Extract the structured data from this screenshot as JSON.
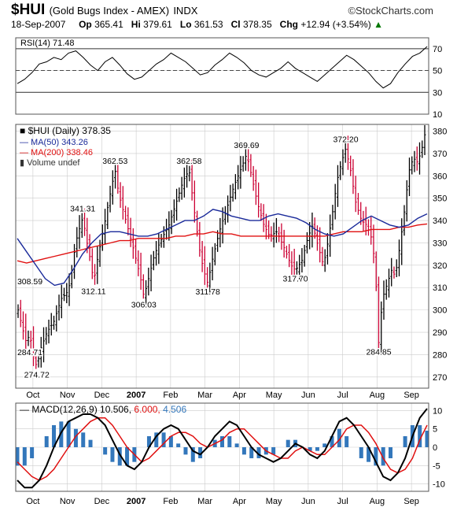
{
  "header": {
    "symbol": "$HUI",
    "name": "(Gold Bugs Index - AMEX)",
    "exchange": "INDX",
    "brand": "©StockCharts.com",
    "date": "18-Sep-2007",
    "op_label": "Op",
    "op": "365.41",
    "hi_label": "Hi",
    "hi": "379.61",
    "lo_label": "Lo",
    "lo": "361.53",
    "cl_label": "Cl",
    "cl": "378.35",
    "chg_label": "Chg",
    "chg": "+12.94 (+3.54%)",
    "chg_arrow": "▲"
  },
  "colors": {
    "price_up": "#000000",
    "price_down": "#cc0033",
    "ma50": "#1a2a9a",
    "ma200": "#e01010",
    "macd": "#000000",
    "signal": "#e01010",
    "hist": "#3377bb",
    "grid": "#cccccc"
  },
  "chart_data": [
    {
      "type": "line",
      "panel": "rsi",
      "title": "RSI(14) 71.48",
      "ylim": [
        10,
        80
      ],
      "y_ticks": [
        70,
        50,
        30,
        10
      ],
      "overbought": 70,
      "oversold": 30,
      "series": [
        {
          "name": "RSI(14)",
          "values": [
            38,
            42,
            48,
            56,
            58,
            62,
            60,
            66,
            68,
            62,
            55,
            50,
            58,
            62,
            55,
            47,
            42,
            44,
            50,
            56,
            60,
            66,
            62,
            58,
            52,
            46,
            48,
            55,
            60,
            66,
            62,
            57,
            50,
            46,
            44,
            48,
            52,
            58,
            52,
            48,
            44,
            40,
            46,
            52,
            58,
            64,
            60,
            54,
            48,
            40,
            34,
            38,
            48,
            56,
            63,
            66,
            72
          ]
        }
      ]
    },
    {
      "type": "ohlc",
      "panel": "price",
      "title": "$HUI (Daily) 378.35",
      "ylim": [
        265,
        383
      ],
      "y_ticks": [
        380,
        370,
        360,
        350,
        340,
        330,
        320,
        310,
        300,
        290,
        280,
        270
      ],
      "x_ticks": [
        "Oct",
        "Nov",
        "Dec",
        "2007",
        "Feb",
        "Mar",
        "Apr",
        "May",
        "Jun",
        "Jul",
        "Aug",
        "Sep"
      ],
      "price_key": [
        [
          0,
          300
        ],
        [
          0.6,
          292
        ],
        [
          1.2,
          284.71
        ],
        [
          1.6,
          290
        ],
        [
          2.2,
          278
        ],
        [
          2.6,
          274.72
        ],
        [
          3.2,
          283
        ],
        [
          4,
          290
        ],
        [
          5,
          295
        ],
        [
          6,
          305
        ],
        [
          7,
          308.59
        ],
        [
          7.6,
          320
        ],
        [
          8,
          330
        ],
        [
          8.6,
          337
        ],
        [
          9,
          341.31
        ],
        [
          9.6,
          330
        ],
        [
          10.2,
          320
        ],
        [
          10.5,
          312.11
        ],
        [
          11,
          322
        ],
        [
          12,
          338
        ],
        [
          13,
          355
        ],
        [
          13.5,
          362.53
        ],
        [
          14,
          352
        ],
        [
          15,
          340
        ],
        [
          16,
          328
        ],
        [
          17,
          315
        ],
        [
          17.5,
          306.03
        ],
        [
          18,
          312
        ],
        [
          19,
          325
        ],
        [
          20,
          332
        ],
        [
          21,
          338
        ],
        [
          22,
          348
        ],
        [
          23,
          358
        ],
        [
          23.8,
          362.58
        ],
        [
          24.5,
          345
        ],
        [
          25.2,
          328
        ],
        [
          25.8,
          318
        ],
        [
          26.4,
          311.78
        ],
        [
          27,
          322
        ],
        [
          28,
          335
        ],
        [
          29,
          345
        ],
        [
          30,
          355
        ],
        [
          31,
          363
        ],
        [
          31.8,
          369.69
        ],
        [
          32.5,
          360
        ],
        [
          33.3,
          348
        ],
        [
          34.2,
          338
        ],
        [
          35,
          333
        ],
        [
          36,
          335
        ],
        [
          37,
          328
        ],
        [
          38,
          320
        ],
        [
          38.6,
          317.7
        ],
        [
          39.5,
          322
        ],
        [
          40.3,
          332
        ],
        [
          41,
          338
        ],
        [
          41.8,
          328
        ],
        [
          42.5,
          320
        ],
        [
          43,
          328
        ],
        [
          43.7,
          342
        ],
        [
          44.4,
          358
        ],
        [
          45,
          366
        ],
        [
          45.6,
          372.2
        ],
        [
          46.3,
          362
        ],
        [
          47,
          348
        ],
        [
          47.8,
          340
        ],
        [
          48.5,
          338
        ],
        [
          49.2,
          332
        ],
        [
          49.7,
          320
        ],
        [
          50.2,
          284.85
        ],
        [
          50.7,
          305
        ],
        [
          51.4,
          312
        ],
        [
          52,
          318
        ],
        [
          52.5,
          315
        ],
        [
          53.2,
          330
        ],
        [
          53.8,
          345
        ],
        [
          54.4,
          362
        ],
        [
          55,
          368
        ],
        [
          55.6,
          366
        ],
        [
          56.2,
          372
        ],
        [
          56.6,
          378.35
        ]
      ],
      "series": [
        {
          "name": "MA(50)",
          "label": "MA(50) 343.26",
          "values": [
            332,
            326,
            320,
            314,
            311,
            312,
            318,
            325,
            330,
            334,
            335,
            335,
            334,
            333,
            333,
            334,
            336,
            338,
            340,
            340,
            342,
            345,
            344,
            342,
            341,
            340,
            340,
            342,
            343,
            342,
            341,
            339,
            336,
            334,
            333,
            334,
            337,
            340,
            342,
            340,
            338,
            337,
            338,
            341,
            343
          ]
        },
        {
          "name": "MA(200)",
          "label": "MA(200) 338.46",
          "values": [
            322,
            321,
            322,
            323,
            324,
            325,
            326,
            327,
            328,
            329,
            330,
            331,
            331,
            332,
            332,
            332,
            332,
            333,
            333,
            334,
            334,
            335,
            334,
            334,
            333,
            333,
            333,
            333,
            333,
            333,
            333,
            333,
            333,
            333,
            334,
            335,
            335,
            335,
            336,
            336,
            336,
            337,
            337,
            338,
            338.46
          ]
        }
      ],
      "volume_label": "Volume undef",
      "annotations": [
        "284.71",
        "274.72",
        "308.59",
        "341.31",
        "312.11",
        "362.53",
        "306.03",
        "362.58",
        "311.78",
        "369.69",
        "317.70",
        "372.20",
        "284.85"
      ]
    },
    {
      "type": "line",
      "panel": "macd",
      "title": "MACD(12,26,9)",
      "macd_value": "10.506",
      "signal_value": "6.000",
      "hist_value": "4.506",
      "ylim": [
        -12,
        12
      ],
      "y_ticks": [
        10,
        5,
        0,
        -5,
        -10
      ],
      "x_ticks": [
        "Oct",
        "Nov",
        "Dec",
        "2007",
        "Feb",
        "Mar",
        "Apr",
        "May",
        "Jun",
        "Jul",
        "Aug",
        "Sep"
      ],
      "series": [
        {
          "name": "MACD",
          "values": [
            -9,
            -11,
            -11,
            -9,
            -5,
            0,
            4,
            7,
            8,
            9,
            9,
            8,
            6,
            2,
            -2,
            -5,
            -6,
            -4,
            0,
            3,
            5,
            6,
            5,
            2,
            -1,
            -2,
            0,
            3,
            5,
            7,
            6,
            3,
            0,
            -2,
            -3,
            -4,
            -3,
            -1,
            1,
            0,
            -2,
            -3,
            -1,
            3,
            7,
            8,
            6,
            3,
            0,
            -4,
            -8,
            -9,
            -7,
            -3,
            3,
            8,
            10.5
          ]
        },
        {
          "name": "Signal",
          "values": [
            -4,
            -6,
            -8,
            -9,
            -8,
            -6,
            -3,
            0,
            3,
            5,
            7,
            8,
            8,
            6,
            3,
            0,
            -2,
            -4,
            -3,
            -1,
            1,
            3,
            4,
            4,
            3,
            1,
            0,
            1,
            2,
            4,
            5,
            5,
            3,
            1,
            -1,
            -2,
            -3,
            -3,
            -1,
            0,
            -1,
            -2,
            -2,
            0,
            2,
            5,
            6,
            6,
            4,
            1,
            -3,
            -6,
            -7,
            -6,
            -3,
            2,
            6
          ]
        }
      ]
    }
  ]
}
